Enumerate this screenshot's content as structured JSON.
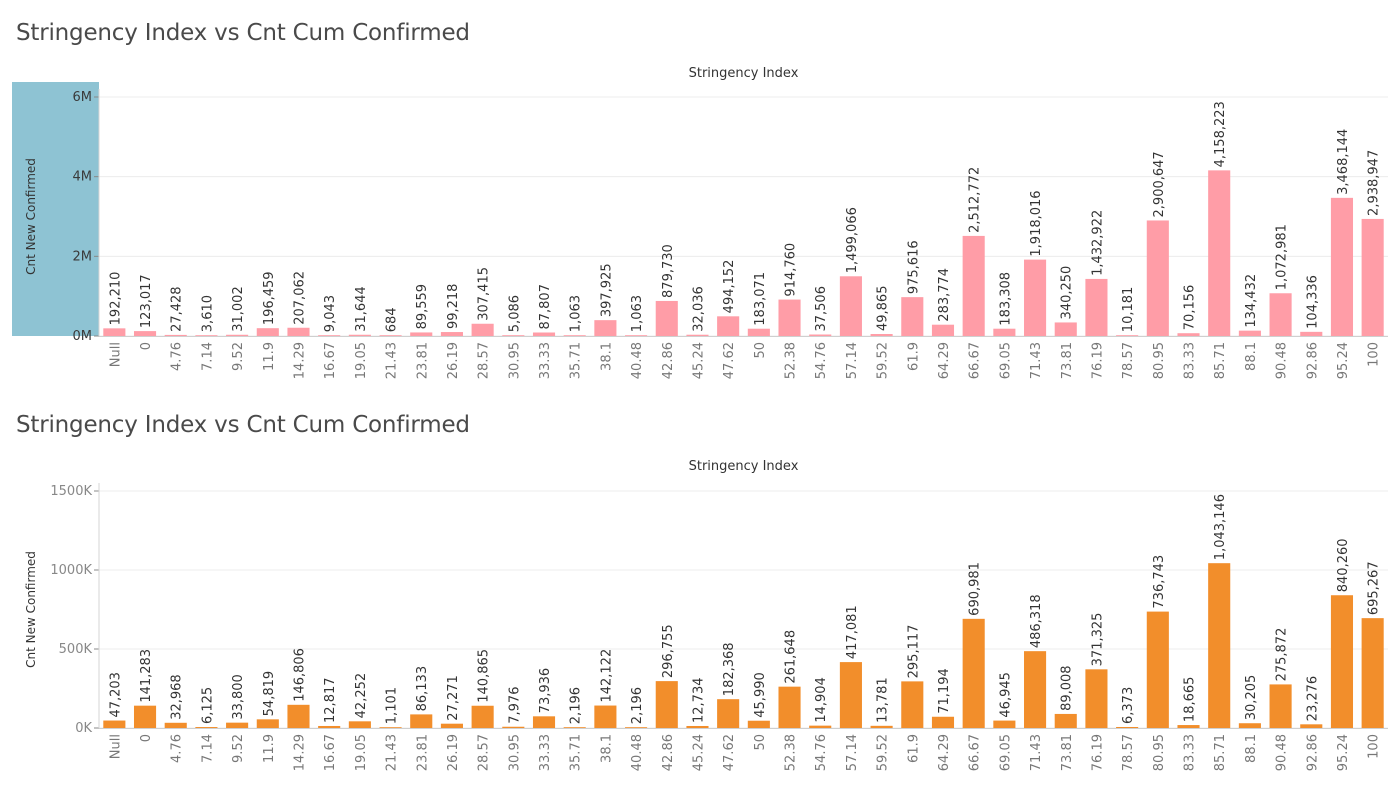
{
  "colors": {
    "series_1": "#ff9da7",
    "series_2": "#f28e2b",
    "axis_highlight": "#8ec3d3"
  },
  "chart_data": [
    {
      "type": "bar",
      "title": "Stringency Index vs Cnt Cum Confirmed",
      "xlabel": "Stringency Index",
      "ylabel": "Cnt New Confirmed",
      "ylim": [
        0,
        6000000
      ],
      "yticks": [
        {
          "value": 0,
          "label": "0M"
        },
        {
          "value": 2000000,
          "label": "2M"
        },
        {
          "value": 4000000,
          "label": "4M"
        },
        {
          "value": 6000000,
          "label": "6M"
        }
      ],
      "color": "#ff9da7",
      "categories": [
        "Null",
        "0",
        "4.76",
        "7.14",
        "9.52",
        "11.9",
        "14.29",
        "16.67",
        "19.05",
        "21.43",
        "23.81",
        "26.19",
        "28.57",
        "30.95",
        "33.33",
        "35.71",
        "38.1",
        "40.48",
        "42.86",
        "45.24",
        "47.62",
        "50",
        "52.38",
        "54.76",
        "57.14",
        "59.52",
        "61.9",
        "64.29",
        "66.67",
        "69.05",
        "71.43",
        "73.81",
        "76.19",
        "78.57",
        "80.95",
        "83.33",
        "85.71",
        "88.1",
        "90.48",
        "92.86",
        "95.24",
        "100"
      ],
      "values": [
        192210,
        123017,
        27428,
        3610,
        31002,
        196459,
        207062,
        9043,
        31644,
        684,
        89559,
        99218,
        307415,
        5086,
        87807,
        1063,
        397925,
        1063,
        879730,
        32036,
        494152,
        183071,
        914760,
        37506,
        1499066,
        49865,
        975616,
        283774,
        2512772,
        183308,
        1918016,
        340250,
        1432922,
        10181,
        2900647,
        70156,
        4158223,
        134432,
        1072981,
        104336,
        3468144,
        2938947
      ],
      "data_labels": [
        "192,210",
        "123,017",
        "27,428",
        "3,610",
        "31,002",
        "196,459",
        "207,062",
        "9,043",
        "31,644",
        "684",
        "89,559",
        "99,218",
        "307,415",
        "5,086",
        "87,807",
        "1,063",
        "397,925",
        "1,063",
        "879,730",
        "32,036",
        "494,152",
        "183,071",
        "914,760",
        "37,506",
        "1,499,066",
        "49,865",
        "975,616",
        "283,774",
        "2,512,772",
        "183,308",
        "1,918,016",
        "340,250",
        "1,432,922",
        "10,181",
        "2,900,647",
        "70,156",
        "4,158,223",
        "134,432",
        "1,072,981",
        "104,336",
        "3,468,144",
        "2,938,947"
      ],
      "grid": true,
      "highlight_y_axis": true
    },
    {
      "type": "bar",
      "title": "Stringency Index vs Cnt Cum Confirmed",
      "xlabel": "Stringency Index",
      "ylabel": "Cnt New Confirmed",
      "ylim": [
        0,
        1500000
      ],
      "yticks": [
        {
          "value": 0,
          "label": "0K"
        },
        {
          "value": 500000,
          "label": "500K"
        },
        {
          "value": 1000000,
          "label": "1000K"
        },
        {
          "value": 1500000,
          "label": "1500K"
        }
      ],
      "color": "#f28e2b",
      "categories": [
        "Null",
        "0",
        "4.76",
        "7.14",
        "9.52",
        "11.9",
        "14.29",
        "16.67",
        "19.05",
        "21.43",
        "23.81",
        "26.19",
        "28.57",
        "30.95",
        "33.33",
        "35.71",
        "38.1",
        "40.48",
        "42.86",
        "45.24",
        "47.62",
        "50",
        "52.38",
        "54.76",
        "57.14",
        "59.52",
        "61.9",
        "64.29",
        "66.67",
        "69.05",
        "71.43",
        "73.81",
        "76.19",
        "78.57",
        "80.95",
        "83.33",
        "85.71",
        "88.1",
        "90.48",
        "92.86",
        "95.24",
        "100"
      ],
      "values": [
        47203,
        141283,
        32968,
        6125,
        33800,
        54819,
        146806,
        12817,
        42252,
        1101,
        86133,
        27271,
        140865,
        7976,
        73936,
        2196,
        142122,
        2196,
        296755,
        12734,
        182368,
        45990,
        261648,
        14904,
        417081,
        13781,
        295117,
        71194,
        690981,
        46945,
        486318,
        89008,
        371325,
        6373,
        736743,
        18665,
        1043146,
        30205,
        275872,
        23276,
        840260,
        695267
      ],
      "data_labels": [
        "47,203",
        "141,283",
        "32,968",
        "6,125",
        "33,800",
        "54,819",
        "146,806",
        "12,817",
        "42,252",
        "1,101",
        "86,133",
        "27,271",
        "140,865",
        "7,976",
        "73,936",
        "2,196",
        "142,122",
        "2,196",
        "296,755",
        "12,734",
        "182,368",
        "45,990",
        "261,648",
        "14,904",
        "417,081",
        "13,781",
        "295,117",
        "71,194",
        "690,981",
        "46,945",
        "486,318",
        "89,008",
        "371,325",
        "6,373",
        "736,743",
        "18,665",
        "1,043,146",
        "30,205",
        "275,872",
        "23,276",
        "840,260",
        "695,267"
      ],
      "grid": true,
      "highlight_y_axis": false
    }
  ]
}
